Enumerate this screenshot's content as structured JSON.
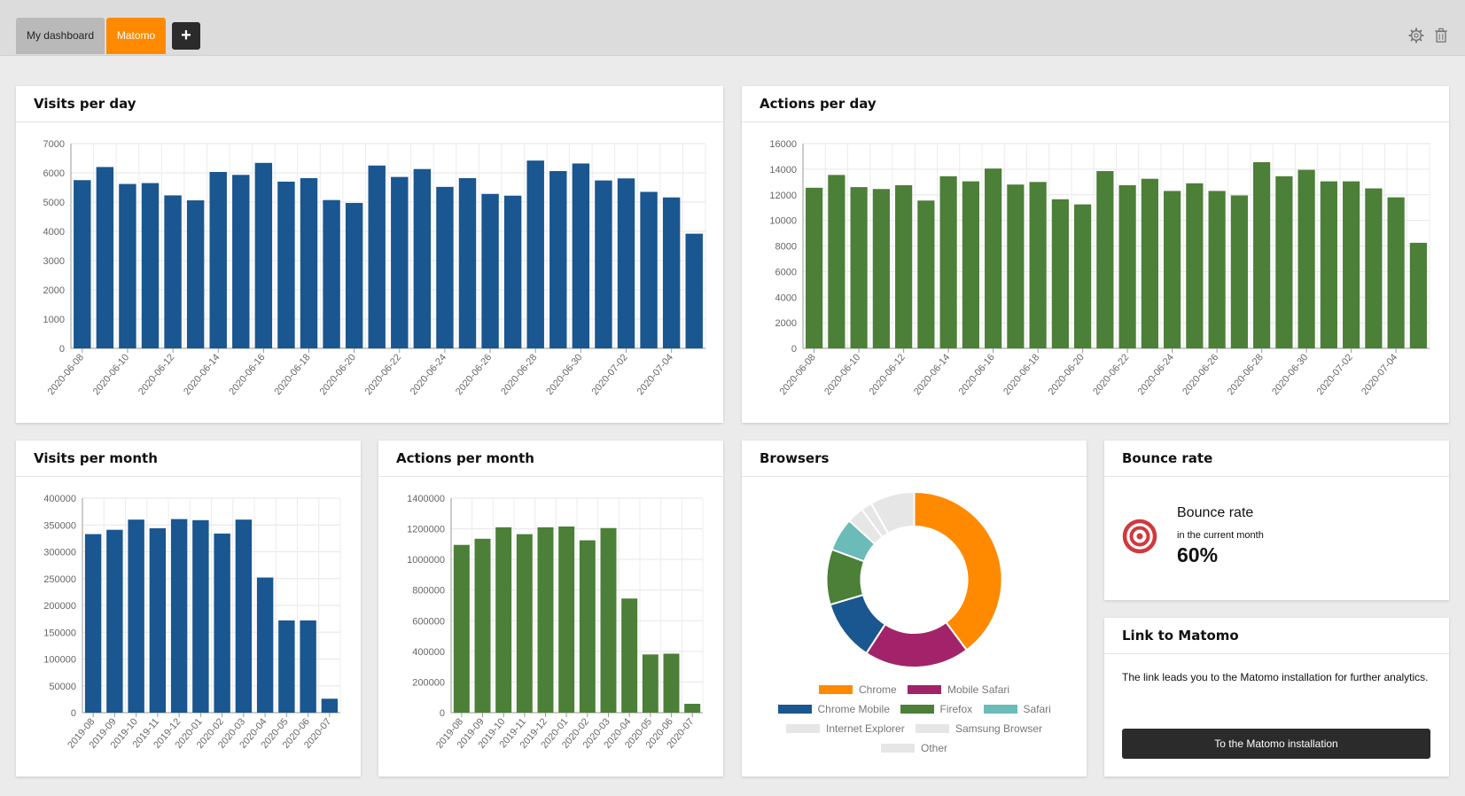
{
  "tabs": [
    {
      "label": "My dashboard"
    },
    {
      "label": "Matomo"
    }
  ],
  "add_tab_label": "+",
  "icons": {
    "settings": "gear-icon",
    "delete": "trash-icon",
    "bounce": "target-icon"
  },
  "colors": {
    "blue": "#1a5690",
    "green": "#4c7f37",
    "orange": "#ff8a00",
    "tab_active": "#ff8a00"
  },
  "cards": {
    "visits_per_day": {
      "title": "Visits per day"
    },
    "actions_per_day": {
      "title": "Actions per day"
    },
    "visits_per_month": {
      "title": "Visits per month"
    },
    "actions_per_month": {
      "title": "Actions per month"
    },
    "browsers": {
      "title": "Browsers"
    },
    "bounce_rate": {
      "title": "Bounce rate",
      "label": "Bounce rate",
      "sublabel": "in the current month",
      "value": "60%"
    },
    "link": {
      "title": "Link to Matomo",
      "text": "The link leads you to the Matomo installation for further analytics.",
      "button_label": "To the Matomo installation"
    }
  },
  "chart_data": [
    {
      "id": "visits_day",
      "type": "bar",
      "title": "Visits per day",
      "color": "#1a5690",
      "categories": [
        "2020-06-08",
        "2020-06-09",
        "2020-06-10",
        "2020-06-11",
        "2020-06-12",
        "2020-06-13",
        "2020-06-14",
        "2020-06-15",
        "2020-06-16",
        "2020-06-17",
        "2020-06-18",
        "2020-06-19",
        "2020-06-20",
        "2020-06-21",
        "2020-06-22",
        "2020-06-23",
        "2020-06-24",
        "2020-06-25",
        "2020-06-26",
        "2020-06-27",
        "2020-06-28",
        "2020-06-29",
        "2020-06-30",
        "2020-07-01",
        "2020-07-02",
        "2020-07-03",
        "2020-07-04",
        "2020-07-05"
      ],
      "values": [
        5750,
        6200,
        5620,
        5650,
        5230,
        5060,
        6030,
        5930,
        6340,
        5700,
        5820,
        5070,
        4970,
        6250,
        5860,
        6130,
        5520,
        5820,
        5280,
        5220,
        6420,
        6060,
        6320,
        5740,
        5810,
        5350,
        5160,
        3920
      ],
      "ylim": [
        0,
        7000
      ],
      "yticks": [
        0,
        1000,
        2000,
        3000,
        4000,
        5000,
        6000,
        7000
      ],
      "xlabels": [
        "2020-06-08",
        "2020-06-10",
        "2020-06-12",
        "2020-06-14",
        "2020-06-16",
        "2020-06-18",
        "2020-06-20",
        "2020-06-22",
        "2020-06-24",
        "2020-06-26",
        "2020-06-28",
        "2020-06-30",
        "2020-07-02",
        "2020-07-04"
      ]
    },
    {
      "id": "actions_day",
      "type": "bar",
      "title": "Actions per day",
      "color": "#4c7f37",
      "categories": [
        "2020-06-08",
        "2020-06-09",
        "2020-06-10",
        "2020-06-11",
        "2020-06-12",
        "2020-06-13",
        "2020-06-14",
        "2020-06-15",
        "2020-06-16",
        "2020-06-17",
        "2020-06-18",
        "2020-06-19",
        "2020-06-20",
        "2020-06-21",
        "2020-06-22",
        "2020-06-23",
        "2020-06-24",
        "2020-06-25",
        "2020-06-26",
        "2020-06-27",
        "2020-06-28",
        "2020-06-29",
        "2020-06-30",
        "2020-07-01",
        "2020-07-02",
        "2020-07-03",
        "2020-07-04",
        "2020-07-05"
      ],
      "values": [
        12550,
        13550,
        12600,
        12450,
        12750,
        11550,
        13450,
        13050,
        14050,
        12800,
        13000,
        11650,
        11250,
        13850,
        12750,
        13250,
        12300,
        12900,
        12300,
        11950,
        14550,
        13450,
        13950,
        13050,
        13050,
        12500,
        11800,
        8250
      ],
      "ylim": [
        0,
        16000
      ],
      "yticks": [
        0,
        2000,
        4000,
        6000,
        8000,
        10000,
        12000,
        14000,
        16000
      ],
      "xlabels": [
        "2020-06-08",
        "2020-06-10",
        "2020-06-12",
        "2020-06-14",
        "2020-06-16",
        "2020-06-18",
        "2020-06-20",
        "2020-06-22",
        "2020-06-24",
        "2020-06-26",
        "2020-06-28",
        "2020-06-30",
        "2020-07-02",
        "2020-07-04"
      ]
    },
    {
      "id": "visits_month",
      "type": "bar",
      "title": "Visits per month",
      "color": "#1a5690",
      "categories": [
        "2019-08",
        "2019-09",
        "2019-10",
        "2019-11",
        "2019-12",
        "2020-01",
        "2020-02",
        "2020-03",
        "2020-04",
        "2020-05",
        "2020-06",
        "2020-07"
      ],
      "values": [
        333000,
        341000,
        360000,
        344000,
        361000,
        359000,
        334000,
        360000,
        252000,
        172000,
        172000,
        26000
      ],
      "ylim": [
        0,
        400000
      ],
      "yticks": [
        0,
        50000,
        100000,
        150000,
        200000,
        250000,
        300000,
        350000,
        400000
      ],
      "xlabels": [
        "2019-08",
        "2019-09",
        "2019-10",
        "2019-11",
        "2019-12",
        "2020-01",
        "2020-02",
        "2020-03",
        "2020-04",
        "2020-05",
        "2020-06",
        "2020-07"
      ]
    },
    {
      "id": "actions_month",
      "type": "bar",
      "title": "Actions per month",
      "color": "#4c7f37",
      "categories": [
        "2019-08",
        "2019-09",
        "2019-10",
        "2019-11",
        "2019-12",
        "2020-01",
        "2020-02",
        "2020-03",
        "2020-04",
        "2020-05",
        "2020-06",
        "2020-07"
      ],
      "values": [
        1095000,
        1135000,
        1210000,
        1165000,
        1210000,
        1215000,
        1125000,
        1205000,
        745000,
        380000,
        385000,
        58000
      ],
      "ylim": [
        0,
        1400000
      ],
      "yticks": [
        0,
        200000,
        400000,
        600000,
        800000,
        1000000,
        1200000,
        1400000
      ],
      "xlabels": [
        "2019-08",
        "2019-09",
        "2019-10",
        "2019-11",
        "2019-12",
        "2020-01",
        "2020-02",
        "2020-03",
        "2020-04",
        "2020-05",
        "2020-06",
        "2020-07"
      ]
    },
    {
      "id": "browsers",
      "type": "pie",
      "title": "Browsers",
      "labels": [
        "Chrome",
        "Mobile Safari",
        "Chrome Mobile",
        "Firefox",
        "Safari",
        "Internet Explorer",
        "Samsung Browser",
        "Other"
      ],
      "values": [
        39,
        19,
        11,
        10,
        6,
        3,
        2,
        8
      ],
      "colors": [
        "#ff8a00",
        "#a3236a",
        "#1a5690",
        "#4c7f37",
        "#6bbbb8",
        "#e6e6e6",
        "#e6e6e6",
        "#e6e6e6"
      ]
    }
  ]
}
